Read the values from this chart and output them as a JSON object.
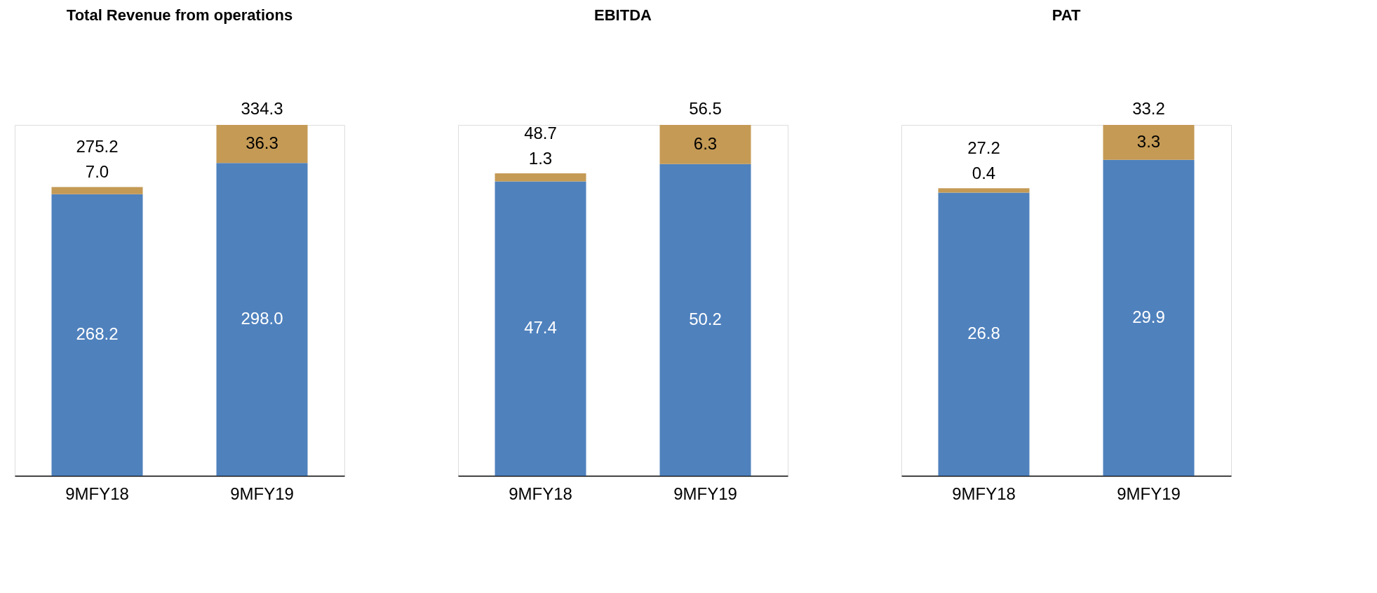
{
  "chart_data": [
    {
      "type": "bar",
      "title": "Total Revenue from operations",
      "stacked": true,
      "data_labels": true,
      "categories": [
        "9MFY18",
        "9MFY19"
      ],
      "series": [
        {
          "color": "#4f81bd",
          "values": [
            268.2,
            298.0
          ],
          "value_labels": [
            "268.2",
            "298.0"
          ]
        },
        {
          "color": "#c49a55",
          "values": [
            7.0,
            36.3
          ],
          "value_labels": [
            "7.0",
            "36.3"
          ]
        }
      ],
      "totals": [
        "275.2",
        "334.3"
      ]
    },
    {
      "type": "bar",
      "title": "EBITDA",
      "stacked": true,
      "data_labels": true,
      "categories": [
        "9MFY18",
        "9MFY19"
      ],
      "series": [
        {
          "color": "#4f81bd",
          "values": [
            47.4,
            50.2
          ]
        },
        {
          "color": "#c49a55",
          "values": [
            1.3,
            6.3
          ]
        }
      ],
      "totals": [
        "48.7",
        "56.5"
      ]
    },
    {
      "type": "bar",
      "title": "PAT",
      "stacked": true,
      "data_labels": true,
      "categories": [
        "9MFY18",
        "9MFY19"
      ],
      "series": [
        {
          "color": "#4f81bd",
          "values": [
            26.8,
            29.9
          ]
        },
        {
          "color": "#c49a55",
          "values": [
            0.4,
            3.3
          ]
        }
      ],
      "totals": [
        "27.2",
        "33.2"
      ]
    }
  ]
}
